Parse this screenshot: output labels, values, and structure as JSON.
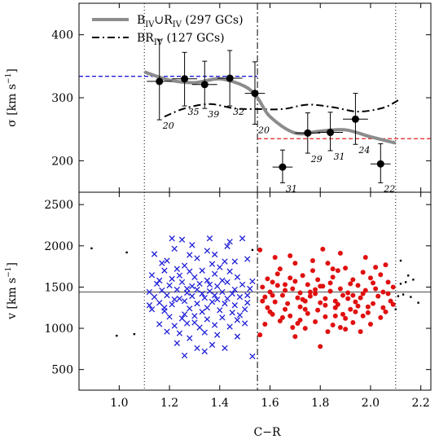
{
  "chart_data": [
    {
      "type": "scatter",
      "panel": "top",
      "ylabel_main": "σ",
      "ylabel_unit": "[km s",
      "ylabel_sup": "−1",
      "ylabel_close": "]",
      "xlim": [
        0.84,
        2.24
      ],
      "ylim": [
        150,
        450
      ],
      "yticks": [
        200,
        300,
        400
      ],
      "legend": [
        {
          "main": "B",
          "sub1": "IV",
          "mid": "∪R",
          "sub2": "IV",
          "tail": " (297 GCs)",
          "style": "solid-gray"
        },
        {
          "main": "BR",
          "sub1": "IV",
          "mid": "",
          "sub2": "",
          "tail": " (127 GCs)",
          "style": "dash-dot-black"
        }
      ],
      "legend_position": "top-left",
      "points": [
        {
          "x": 1.16,
          "y": 326,
          "xerr": 0.05,
          "ylo": 265,
          "yhi": 392,
          "label": "20"
        },
        {
          "x": 1.26,
          "y": 330,
          "xerr": 0.05,
          "ylo": 287,
          "yhi": 372,
          "label": "35"
        },
        {
          "x": 1.34,
          "y": 321,
          "xerr": 0.05,
          "ylo": 283,
          "yhi": 358,
          "label": "39"
        },
        {
          "x": 1.44,
          "y": 331,
          "xerr": 0.05,
          "ylo": 287,
          "yhi": 375,
          "label": "32"
        },
        {
          "x": 1.54,
          "y": 307,
          "xerr": 0.04,
          "ylo": 258,
          "yhi": 357,
          "label": "20"
        },
        {
          "x": 1.65,
          "y": 190,
          "xerr": 0.04,
          "ylo": 165,
          "yhi": 217,
          "label": "31"
        },
        {
          "x": 1.75,
          "y": 244,
          "xerr": 0.05,
          "ylo": 212,
          "yhi": 276,
          "label": "29"
        },
        {
          "x": 1.84,
          "y": 245,
          "xerr": 0.05,
          "ylo": 216,
          "yhi": 277,
          "label": "31"
        },
        {
          "x": 1.94,
          "y": 266,
          "xerr": 0.05,
          "ylo": 226,
          "yhi": 307,
          "label": "24"
        },
        {
          "x": 2.04,
          "y": 195,
          "xerr": 0.04,
          "ylo": 165,
          "yhi": 227,
          "label": "22"
        }
      ],
      "series_solid": {
        "x": [
          1.1,
          1.2,
          1.3,
          1.4,
          1.5,
          1.55,
          1.6,
          1.7,
          1.8,
          1.9,
          2.0,
          2.1
        ],
        "y": [
          341,
          328,
          324,
          330,
          318,
          300,
          270,
          244,
          247,
          249,
          238,
          228
        ]
      },
      "series_dashdot": {
        "x": [
          1.18,
          1.26,
          1.36,
          1.46,
          1.55,
          1.65,
          1.75,
          1.85,
          1.95,
          2.05,
          2.11
        ],
        "y": [
          270,
          283,
          290,
          283,
          282,
          282,
          289,
          285,
          278,
          284,
          296
        ]
      },
      "blue_level": {
        "y": 334,
        "x": [
          0.84,
          1.55
        ]
      },
      "red_level": {
        "y": 235,
        "x": [
          1.55,
          2.24
        ]
      },
      "vlines": {
        "dotted": [
          1.1,
          2.1
        ],
        "dashdot": [
          1.55
        ]
      }
    },
    {
      "type": "scatter",
      "panel": "bottom",
      "xlabel": "C−R",
      "ylabel_main": "v",
      "ylabel_unit": "[km s",
      "ylabel_sup": "−1",
      "ylabel_close": "]",
      "xlim": [
        0.84,
        2.24
      ],
      "ylim": [
        250,
        2650
      ],
      "xticks": [
        "1.0",
        "1.2",
        "1.4",
        "1.6",
        "1.8",
        "2.0",
        "2.2"
      ],
      "yticks": [
        500,
        1000,
        1500,
        2000,
        2500
      ],
      "hline": 1440,
      "vlines": {
        "dotted": [
          1.1,
          2.1
        ],
        "dashdot": [
          1.55
        ]
      },
      "blue_crosses": [
        [
          1.21,
          2090
        ],
        [
          1.14,
          1900
        ],
        [
          1.29,
          2010
        ],
        [
          1.22,
          1965
        ],
        [
          1.25,
          2075
        ],
        [
          1.36,
          2090
        ],
        [
          1.43,
          1995
        ],
        [
          1.38,
          1895
        ],
        [
          1.28,
          1890
        ],
        [
          1.35,
          1940
        ],
        [
          1.44,
          2050
        ],
        [
          1.49,
          2090
        ],
        [
          1.19,
          1820
        ],
        [
          1.31,
          1850
        ],
        [
          1.17,
          1790
        ],
        [
          1.26,
          1760
        ],
        [
          1.37,
          1780
        ],
        [
          1.42,
          1810
        ],
        [
          1.46,
          1810
        ],
        [
          1.51,
          1840
        ],
        [
          1.18,
          1700
        ],
        [
          1.23,
          1720
        ],
        [
          1.28,
          1690
        ],
        [
          1.33,
          1700
        ],
        [
          1.38,
          1660
        ],
        [
          1.44,
          1690
        ],
        [
          1.13,
          1645
        ],
        [
          1.21,
          1600
        ],
        [
          1.3,
          1620
        ],
        [
          1.35,
          1580
        ],
        [
          1.47,
          1620
        ],
        [
          1.53,
          1570
        ],
        [
          1.15,
          1540
        ],
        [
          1.2,
          1520
        ],
        [
          1.25,
          1560
        ],
        [
          1.29,
          1510
        ],
        [
          1.32,
          1540
        ],
        [
          1.39,
          1510
        ],
        [
          1.43,
          1560
        ],
        [
          1.49,
          1530
        ],
        [
          1.12,
          1440
        ],
        [
          1.17,
          1460
        ],
        [
          1.23,
          1470
        ],
        [
          1.27,
          1430
        ],
        [
          1.31,
          1470
        ],
        [
          1.36,
          1450
        ],
        [
          1.41,
          1440
        ],
        [
          1.46,
          1470
        ],
        [
          1.52,
          1480
        ],
        [
          1.14,
          1380
        ],
        [
          1.19,
          1400
        ],
        [
          1.24,
          1360
        ],
        [
          1.29,
          1390
        ],
        [
          1.34,
          1370
        ],
        [
          1.38,
          1400
        ],
        [
          1.43,
          1360
        ],
        [
          1.48,
          1380
        ],
        [
          1.16,
          1310
        ],
        [
          1.21,
          1290
        ],
        [
          1.26,
          1330
        ],
        [
          1.31,
          1300
        ],
        [
          1.37,
          1320
        ],
        [
          1.42,
          1300
        ],
        [
          1.46,
          1280
        ],
        [
          1.51,
          1310
        ],
        [
          1.13,
          1230
        ],
        [
          1.18,
          1210
        ],
        [
          1.28,
          1240
        ],
        [
          1.33,
          1200
        ],
        [
          1.4,
          1220
        ],
        [
          1.45,
          1190
        ],
        [
          1.5,
          1230
        ],
        [
          1.2,
          1140
        ],
        [
          1.25,
          1120
        ],
        [
          1.3,
          1150
        ],
        [
          1.35,
          1110
        ],
        [
          1.41,
          1130
        ],
        [
          1.47,
          1100
        ],
        [
          1.16,
          1050
        ],
        [
          1.22,
          1030
        ],
        [
          1.27,
          1060
        ],
        [
          1.32,
          1010
        ],
        [
          1.38,
          1040
        ],
        [
          1.44,
          1020
        ],
        [
          1.5,
          1060
        ],
        [
          1.19,
          960
        ],
        [
          1.24,
          940
        ],
        [
          1.34,
          950
        ],
        [
          1.39,
          920
        ],
        [
          1.47,
          900
        ],
        [
          1.28,
          880
        ],
        [
          1.23,
          820
        ],
        [
          1.37,
          800
        ],
        [
          1.42,
          760
        ],
        [
          1.31,
          760
        ],
        [
          1.26,
          670
        ],
        [
          1.34,
          720
        ],
        [
          1.53,
          660
        ],
        [
          1.16,
          1580
        ],
        [
          1.4,
          1740
        ],
        [
          1.27,
          1480
        ],
        [
          1.35,
          1250
        ],
        [
          1.45,
          1420
        ],
        [
          1.22,
          1350
        ],
        [
          1.33,
          1420
        ],
        [
          1.48,
          1160
        ],
        [
          1.18,
          1250
        ],
        [
          1.3,
          1070
        ],
        [
          1.41,
          1580
        ],
        [
          1.26,
          1170
        ],
        [
          1.36,
          1530
        ],
        [
          1.24,
          1640
        ],
        [
          1.39,
          1350
        ],
        [
          1.51,
          1400
        ],
        [
          1.12,
          1280
        ]
      ],
      "red_dots": [
        [
          1.59,
          1600
        ],
        [
          1.64,
          1720
        ],
        [
          1.7,
          1790
        ],
        [
          1.77,
          1820
        ],
        [
          1.83,
          1790
        ],
        [
          1.9,
          1730
        ],
        [
          1.97,
          1680
        ],
        [
          2.04,
          1650
        ],
        [
          1.61,
          1560
        ],
        [
          1.68,
          1610
        ],
        [
          1.73,
          1640
        ],
        [
          1.79,
          1590
        ],
        [
          1.85,
          1620
        ],
        [
          1.93,
          1590
        ],
        [
          2.0,
          1610
        ],
        [
          2.07,
          1560
        ],
        [
          1.57,
          1500
        ],
        [
          1.63,
          1520
        ],
        [
          1.69,
          1480
        ],
        [
          1.75,
          1530
        ],
        [
          1.81,
          1510
        ],
        [
          1.88,
          1480
        ],
        [
          1.95,
          1520
        ],
        [
          2.02,
          1480
        ],
        [
          2.09,
          1500
        ],
        [
          1.6,
          1440
        ],
        [
          1.66,
          1460
        ],
        [
          1.72,
          1430
        ],
        [
          1.78,
          1470
        ],
        [
          1.84,
          1450
        ],
        [
          1.91,
          1430
        ],
        [
          1.98,
          1460
        ],
        [
          2.05,
          1440
        ],
        [
          1.58,
          1380
        ],
        [
          1.65,
          1400
        ],
        [
          1.71,
          1370
        ],
        [
          1.76,
          1390
        ],
        [
          1.82,
          1360
        ],
        [
          1.89,
          1400
        ],
        [
          1.96,
          1370
        ],
        [
          2.03,
          1390
        ],
        [
          1.62,
          1320
        ],
        [
          1.67,
          1300
        ],
        [
          1.74,
          1330
        ],
        [
          1.8,
          1310
        ],
        [
          1.87,
          1290
        ],
        [
          1.94,
          1320
        ],
        [
          2.01,
          1300
        ],
        [
          2.08,
          1330
        ],
        [
          1.59,
          1250
        ],
        [
          1.66,
          1230
        ],
        [
          1.72,
          1260
        ],
        [
          1.79,
          1220
        ],
        [
          1.86,
          1250
        ],
        [
          1.92,
          1230
        ],
        [
          1.99,
          1260
        ],
        [
          1.61,
          1170
        ],
        [
          1.68,
          1150
        ],
        [
          1.75,
          1180
        ],
        [
          1.82,
          1140
        ],
        [
          1.89,
          1170
        ],
        [
          1.97,
          1150
        ],
        [
          2.04,
          1130
        ],
        [
          1.64,
          1090
        ],
        [
          1.71,
          1060
        ],
        [
          1.78,
          1080
        ],
        [
          1.85,
          1040
        ],
        [
          1.93,
          1070
        ],
        [
          2.0,
          1050
        ],
        [
          1.56,
          1950
        ],
        [
          1.81,
          1960
        ],
        [
          1.88,
          1910
        ],
        [
          1.98,
          1860
        ],
        [
          1.68,
          1880
        ],
        [
          2.06,
          1770
        ],
        [
          1.74,
          1000
        ],
        [
          1.83,
          960
        ],
        [
          1.9,
          990
        ],
        [
          1.56,
          920
        ],
        [
          1.7,
          900
        ],
        [
          1.8,
          780
        ],
        [
          1.96,
          960
        ],
        [
          1.62,
          1860
        ],
        [
          1.87,
          1700
        ],
        [
          2.02,
          1740
        ],
        [
          1.77,
          1700
        ],
        [
          1.66,
          1530
        ],
        [
          1.84,
          1550
        ],
        [
          1.92,
          1540
        ],
        [
          2.07,
          1420
        ],
        [
          1.73,
          1350
        ],
        [
          1.86,
          1330
        ],
        [
          1.95,
          1270
        ],
        [
          1.6,
          1200
        ],
        [
          1.76,
          1440
        ],
        [
          1.9,
          1120
        ],
        [
          1.99,
          1190
        ],
        [
          1.58,
          1050
        ],
        [
          1.69,
          1010
        ],
        [
          1.88,
          1010
        ],
        [
          2.05,
          1250
        ],
        [
          1.63,
          1660
        ],
        [
          1.78,
          1420
        ],
        [
          1.93,
          1400
        ],
        [
          2.01,
          1550
        ],
        [
          1.7,
          1570
        ],
        [
          1.85,
          1720
        ],
        [
          1.74,
          1230
        ],
        [
          1.82,
          1280
        ],
        [
          1.57,
          1330
        ],
        [
          1.91,
          1360
        ],
        [
          2.06,
          1200
        ],
        [
          1.65,
          1130
        ],
        [
          1.8,
          1510
        ],
        [
          1.97,
          1420
        ],
        [
          2.09,
          1290
        ],
        [
          1.72,
          1100
        ],
        [
          1.86,
          1150
        ],
        [
          1.94,
          1200
        ],
        [
          1.61,
          1400
        ]
      ],
      "black_dots": [
        [
          0.89,
          1970
        ],
        [
          1.03,
          1920
        ],
        [
          0.99,
          910
        ],
        [
          1.06,
          930
        ],
        [
          1.53,
          1950
        ],
        [
          2.12,
          1820
        ],
        [
          2.15,
          1640
        ],
        [
          2.17,
          1590
        ],
        [
          2.13,
          1410
        ],
        [
          2.11,
          1390
        ],
        [
          2.14,
          1560
        ],
        [
          2.19,
          1310
        ],
        [
          2.1,
          1230
        ],
        [
          2.16,
          1380
        ],
        [
          2.12,
          1540
        ]
      ]
    }
  ]
}
